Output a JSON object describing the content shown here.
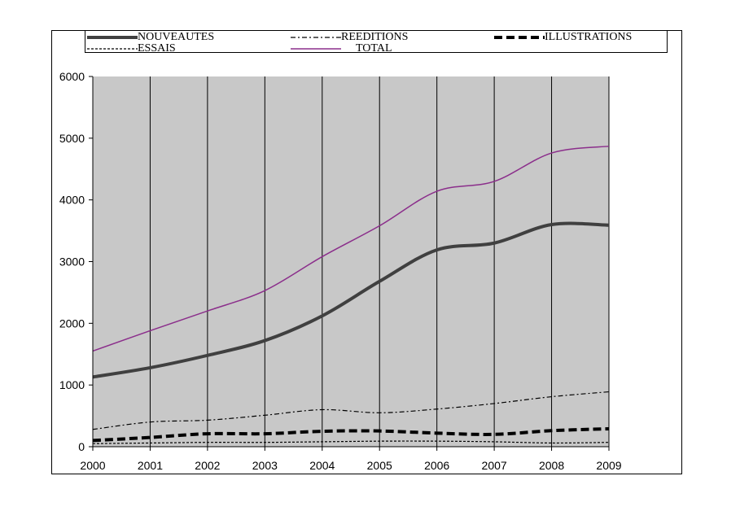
{
  "chart_data": {
    "type": "line",
    "title": "",
    "xlabel": "",
    "ylabel": "",
    "x": [
      2000,
      2001,
      2002,
      2003,
      2004,
      2005,
      2006,
      2007,
      2008,
      2009
    ],
    "x_tick_labels": [
      "2000",
      "2001",
      "2002",
      "2003",
      "2004",
      "2005",
      "2006",
      "2007",
      "2008",
      "2009"
    ],
    "ylim": [
      0,
      6000
    ],
    "y_ticks": [
      0,
      1000,
      2000,
      3000,
      4000,
      5000,
      6000
    ],
    "y_tick_labels": [
      "0",
      "1000",
      "2000",
      "3000",
      "4000",
      "5000",
      "6000"
    ],
    "grid": "vertical lines at each year",
    "plot_background": "#c8c8c8",
    "legend_position": "top",
    "series": [
      {
        "name": "NOUVEAUTES",
        "style": "thick-solid",
        "color": "#404040",
        "values": [
          1130,
          1280,
          1480,
          1720,
          2120,
          2680,
          3190,
          3300,
          3600,
          3590
        ]
      },
      {
        "name": "REEDITIONS",
        "style": "dash-dot",
        "color": "#000000",
        "values": [
          280,
          400,
          430,
          510,
          600,
          550,
          610,
          700,
          810,
          890
        ]
      },
      {
        "name": "ILLUSTRATIONS",
        "style": "thick-dash",
        "color": "#000000",
        "values": [
          100,
          150,
          210,
          210,
          250,
          255,
          220,
          200,
          260,
          290
        ]
      },
      {
        "name": "ESSAIS",
        "style": "dotted",
        "color": "#000000",
        "values": [
          50,
          60,
          70,
          70,
          80,
          90,
          90,
          80,
          60,
          70
        ]
      },
      {
        "name": "TOTAL",
        "style": "thin-solid",
        "color": "#8b2e8b",
        "values": [
          1550,
          1880,
          2200,
          2530,
          3080,
          3580,
          4140,
          4300,
          4760,
          4870
        ]
      }
    ]
  }
}
